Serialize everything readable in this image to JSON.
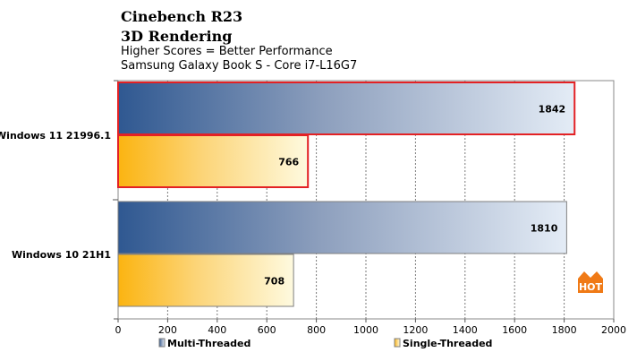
{
  "chart_data": {
    "type": "bar",
    "orientation": "horizontal",
    "title": "Cinebench R23",
    "subtitle": "3D Rendering",
    "notes": [
      "Higher  Scores = Better Performance",
      "Samsung  Galaxy  Book S - Core i7-L16G7"
    ],
    "categories": [
      "Windows 11 21996.1",
      "Windows 10 21H1"
    ],
    "series": [
      {
        "name": "Multi-Threaded",
        "values": [
          1842,
          1810
        ],
        "color": "#355f96"
      },
      {
        "name": "Single-Threaded",
        "values": [
          766,
          708
        ],
        "color": "#fbb614"
      }
    ],
    "highlighted_category": "Windows 11 21996.1",
    "highlight_color": "#e32124",
    "xlim": [
      0,
      2000
    ],
    "xticks": [
      0,
      200,
      400,
      600,
      800,
      1000,
      1200,
      1400,
      1600,
      1800,
      2000
    ],
    "grid": "vertical-dashed",
    "legend_position": "bottom",
    "watermark": "HOT"
  }
}
